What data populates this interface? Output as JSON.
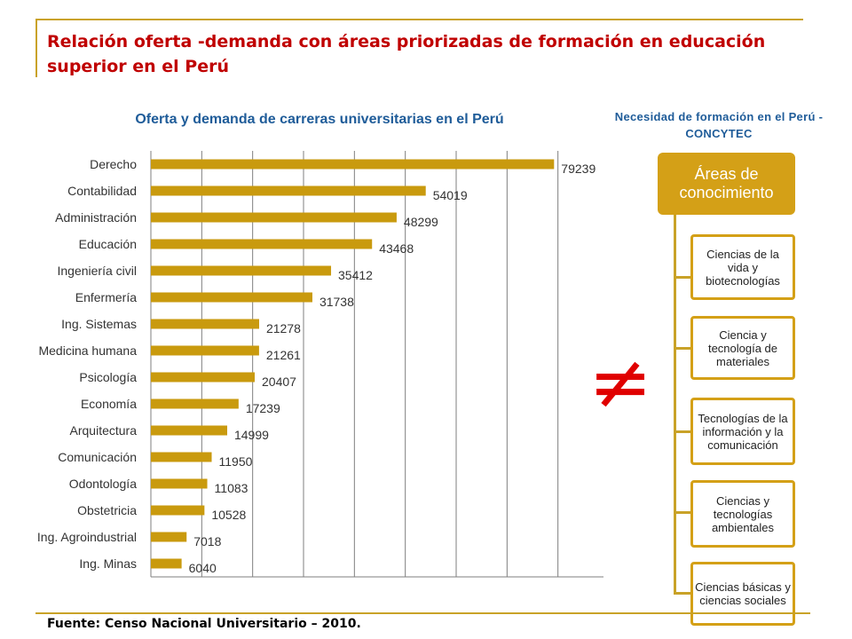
{
  "slide": {
    "title": "Relación oferta -demanda con áreas priorizadas de formación en educación superior en el Perú",
    "source": "Fuente: Censo Nacional Universitario – 2010.",
    "inequality_symbol": "≠"
  },
  "chart_data": {
    "type": "bar",
    "orientation": "horizontal",
    "title": "Oferta y demanda de carreras universitarias en el Perú",
    "categories": [
      "Derecho",
      "Contabilidad",
      "Administración",
      "Educación",
      "Ingeniería civil",
      "Enfermería",
      "Ing. Sistemas",
      "Medicina humana",
      "Psicología",
      "Economía",
      "Arquitectura",
      "Comunicación",
      "Odontología",
      "Obstetricia",
      "Ing. Agroindustrial",
      "Ing. Minas"
    ],
    "values": [
      79239,
      54019,
      48299,
      43468,
      35412,
      31738,
      21278,
      21261,
      20407,
      17239,
      14999,
      11950,
      11083,
      10528,
      7018,
      6040
    ],
    "xlim": [
      0,
      90000
    ],
    "grid": true,
    "data_labels": true,
    "bar_color": "#c99a0e"
  },
  "areas": {
    "title": "Necesidad de formación en el Perú - CONCYTEC",
    "root": "Áreas de conocimiento",
    "items": [
      "Ciencias de la vida y biotecnologías",
      "Ciencia y tecnología de materiales",
      "Tecnologías de la información y la comunicación",
      "Ciencias y tecnologías ambientales",
      "Ciencias básicas y ciencias sociales"
    ]
  }
}
